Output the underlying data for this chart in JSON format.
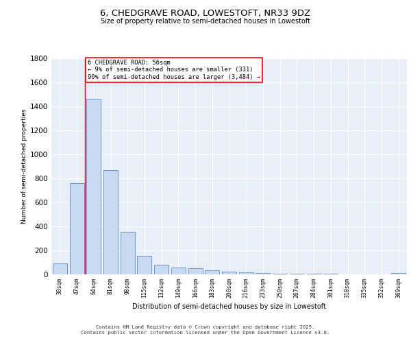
{
  "title1": "6, CHEDGRAVE ROAD, LOWESTOFT, NR33 9DZ",
  "title2": "Size of property relative to semi-detached houses in Lowestoft",
  "xlabel": "Distribution of semi-detached houses by size in Lowestoft",
  "ylabel": "Number of semi-detached properties",
  "categories": [
    "30sqm",
    "47sqm",
    "64sqm",
    "81sqm",
    "98sqm",
    "115sqm",
    "132sqm",
    "149sqm",
    "166sqm",
    "183sqm",
    "200sqm",
    "216sqm",
    "233sqm",
    "250sqm",
    "267sqm",
    "284sqm",
    "301sqm",
    "318sqm",
    "335sqm",
    "352sqm",
    "369sqm"
  ],
  "values": [
    90,
    760,
    1460,
    870,
    355,
    155,
    80,
    60,
    50,
    35,
    25,
    18,
    12,
    8,
    5,
    4,
    3,
    2,
    2,
    1,
    10
  ],
  "bar_color": "#c9d9f0",
  "bar_edge_color": "#5b8ec9",
  "vline_x": 1.5,
  "vline_color": "red",
  "annotation_text": "6 CHEDGRAVE ROAD: 56sqm\n← 9% of semi-detached houses are smaller (331)\n90% of semi-detached houses are larger (3,484) →",
  "annotation_box_color": "white",
  "annotation_box_edge": "red",
  "ylim": [
    0,
    1800
  ],
  "background_color": "#e8eef8",
  "footer1": "Contains HM Land Registry data © Crown copyright and database right 2025.",
  "footer2": "Contains public sector information licensed under the Open Government Licence v3.0."
}
